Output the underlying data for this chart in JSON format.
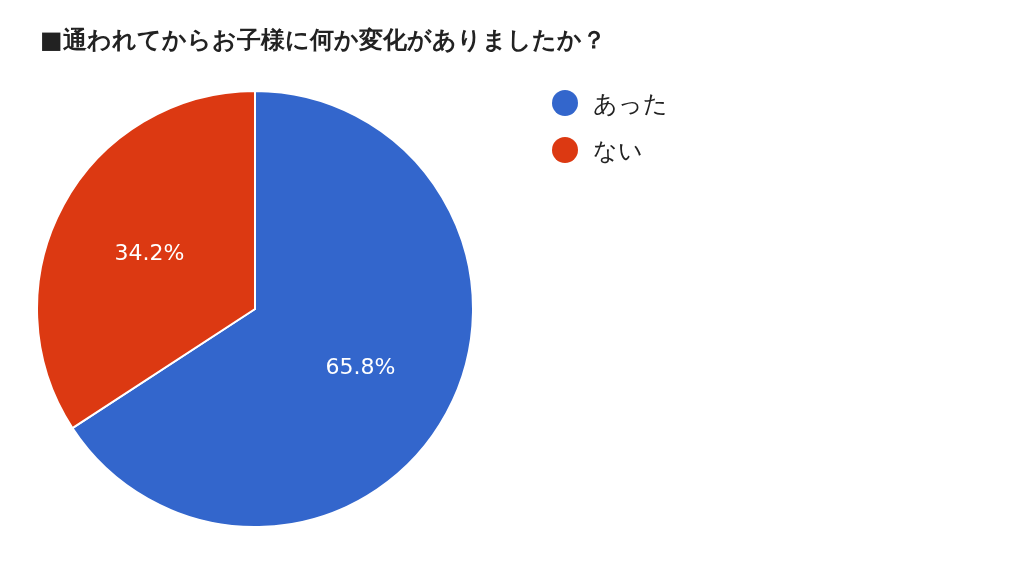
{
  "chart_data": {
    "type": "pie",
    "title": "■通われてからお子様に何か変化がありましたか？",
    "categories": [
      "あった",
      "ない"
    ],
    "values": [
      65.8,
      34.2
    ],
    "colors": [
      "#3366cc",
      "#dc3912"
    ],
    "value_labels": [
      "65.8%",
      "34.2%"
    ],
    "legend": "right"
  }
}
